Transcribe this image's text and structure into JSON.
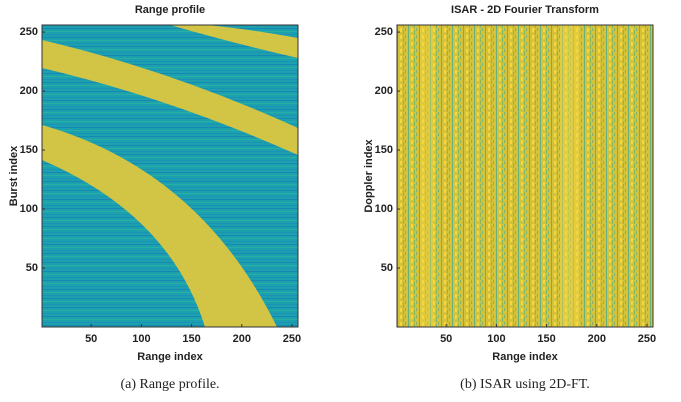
{
  "chart_data": [
    {
      "type": "heatmap",
      "title": "Range profile",
      "xlabel": "Range index",
      "ylabel": "Burst index",
      "xlim": [
        1,
        256
      ],
      "ylim": [
        0,
        256
      ],
      "xticks": [
        50,
        100,
        150,
        200,
        250
      ],
      "yticks": [
        50,
        100,
        150,
        200,
        250
      ],
      "caption": "(a) Range profile."
    },
    {
      "type": "heatmap",
      "title": "ISAR - 2D Fourier Transform",
      "xlabel": "Range index",
      "ylabel": "Doppler index",
      "xlim": [
        1,
        256
      ],
      "ylim": [
        0,
        256
      ],
      "xticks": [
        50,
        100,
        150,
        200,
        250
      ],
      "yticks": [
        50,
        100,
        150,
        200,
        250
      ],
      "caption": "(b) ISAR using 2D-FT."
    }
  ]
}
